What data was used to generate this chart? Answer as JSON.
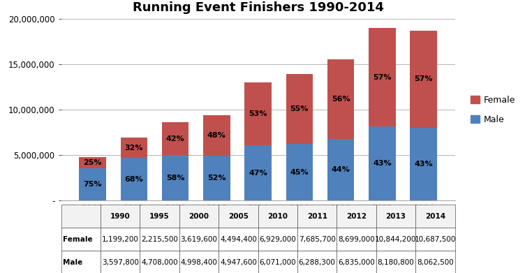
{
  "title": "Running Event Finishers 1990-2014",
  "years": [
    "1990",
    "1995",
    "2000",
    "2005",
    "2010",
    "2011",
    "2012",
    "2013",
    "2014"
  ],
  "female": [
    1199200,
    2215500,
    3619600,
    4494400,
    6929000,
    7685700,
    8699000,
    10844200,
    10687500
  ],
  "male": [
    3597800,
    4708000,
    4998400,
    4947600,
    6071000,
    6288300,
    6835000,
    8180800,
    8062500
  ],
  "female_pct": [
    "25%",
    "32%",
    "42%",
    "48%",
    "53%",
    "55%",
    "56%",
    "57%",
    "57%"
  ],
  "male_pct": [
    "75%",
    "68%",
    "58%",
    "52%",
    "47%",
    "45%",
    "44%",
    "43%",
    "43%"
  ],
  "female_color": "#c0504d",
  "male_color": "#4f81bd",
  "ylim": [
    0,
    20000000
  ],
  "yticks": [
    0,
    5000000,
    10000000,
    15000000,
    20000000
  ],
  "ytick_labels": [
    "-",
    "5,000,000",
    "10,000,000",
    "15,000,000",
    "20,000,000"
  ],
  "legend_female": "Female",
  "legend_male": "Male",
  "table_row_labels": [
    "Female",
    "Male"
  ],
  "background_color": "#ffffff",
  "title_fontsize": 13,
  "tick_fontsize": 8.5,
  "pct_fontsize": 8,
  "table_fontsize": 7.5,
  "legend_fontsize": 9
}
